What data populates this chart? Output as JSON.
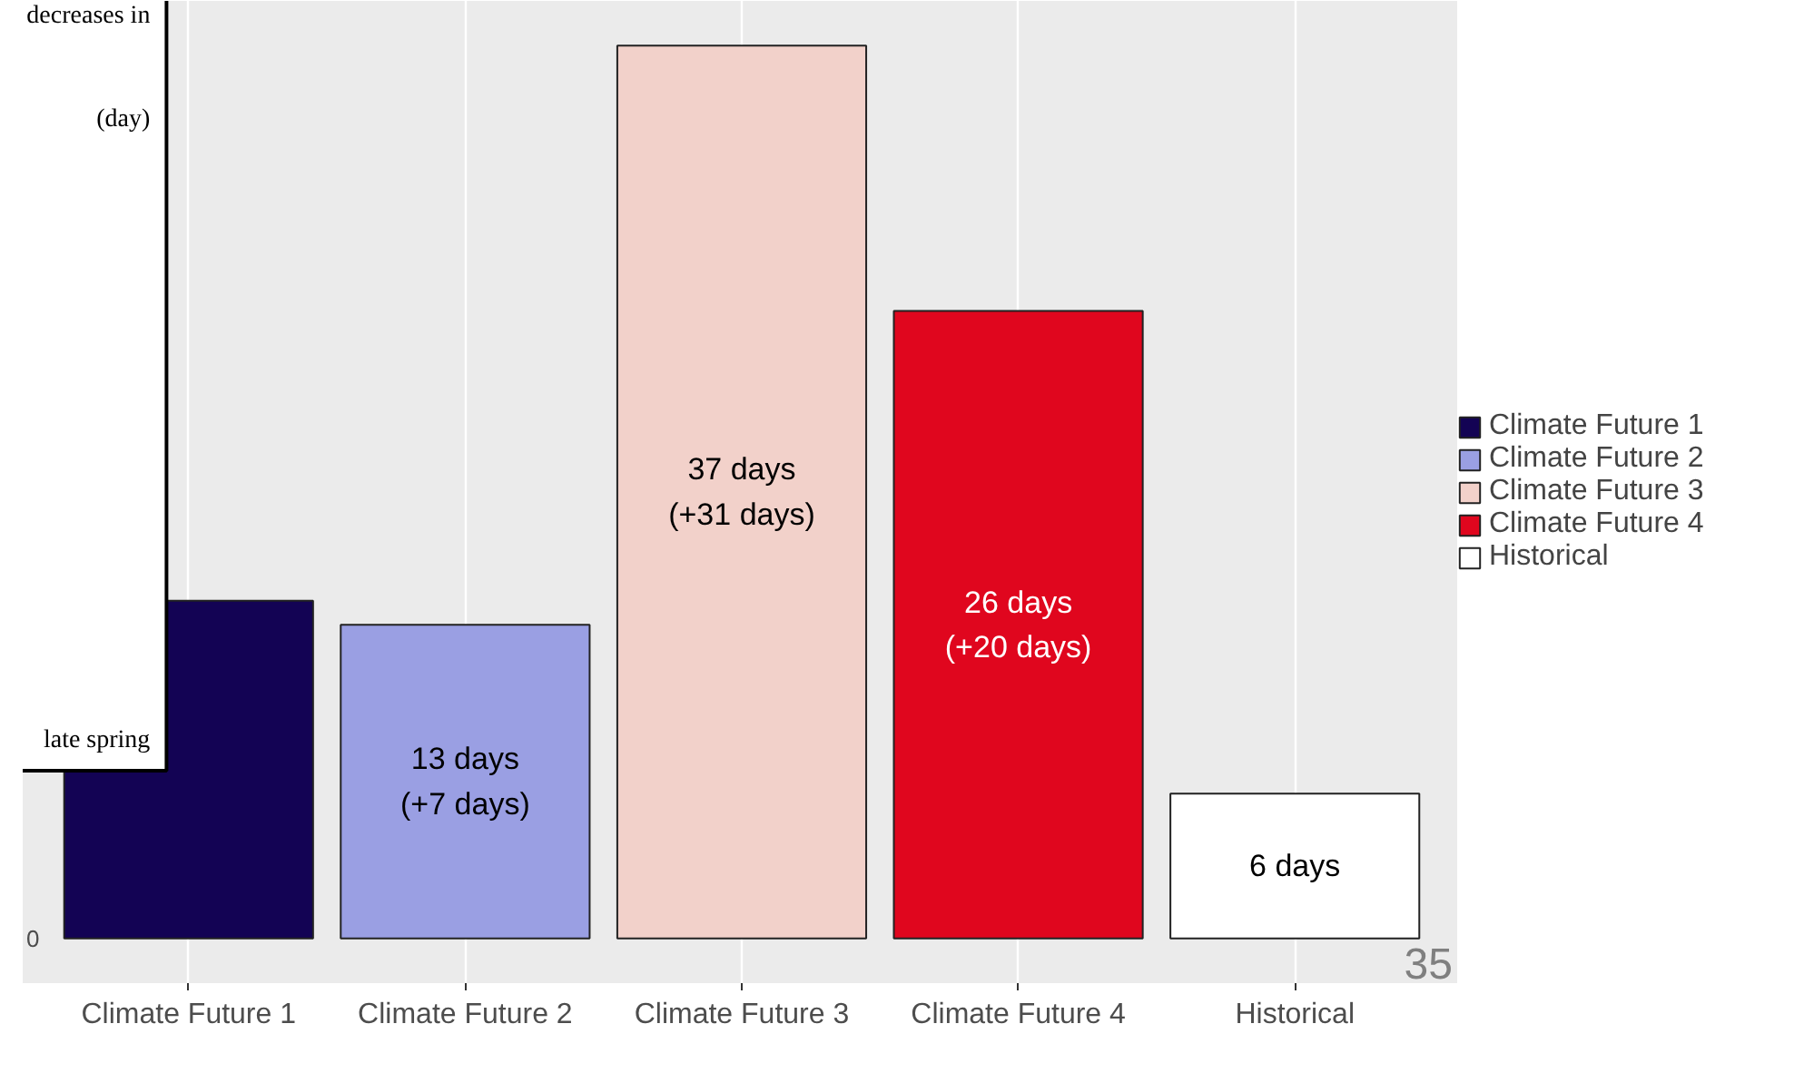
{
  "chart_data": {
    "type": "bar",
    "categories": [
      "Climate Future 1",
      "Climate Future 2",
      "Climate Future 3",
      "Climate Future 4",
      "Historical"
    ],
    "series": [
      {
        "name": "Climate Future 1",
        "color": "#130354",
        "values": [
          14,
          null,
          null,
          null,
          null
        ],
        "value_labels": [
          null,
          null,
          null,
          null,
          null
        ]
      },
      {
        "name": "Climate Future 2",
        "color": "#9a9fe3",
        "values": [
          null,
          13,
          null,
          null,
          null
        ],
        "value_labels": [
          null,
          "13 days\n(+7 days)",
          null,
          null,
          null
        ]
      },
      {
        "name": "Climate Future 3",
        "color": "#f2d1ca",
        "values": [
          null,
          null,
          37,
          null,
          null
        ],
        "value_labels": [
          null,
          null,
          "37 days\n(+31 days)",
          null,
          null
        ]
      },
      {
        "name": "Climate Future 4",
        "color": "#e0061e",
        "values": [
          null,
          null,
          null,
          26,
          null
        ],
        "value_labels": [
          null,
          null,
          null,
          "26 days\n(+20 days)",
          null
        ]
      },
      {
        "name": "Historical",
        "color": "#ffffff",
        "values": [
          null,
          null,
          null,
          null,
          6
        ],
        "value_labels": [
          null,
          null,
          null,
          null,
          "6 days"
        ]
      }
    ],
    "grid": "x",
    "legend": "right",
    "annotations": [
      "decreases in",
      "(day)",
      "late spring",
      "35",
      "0"
    ]
  }
}
